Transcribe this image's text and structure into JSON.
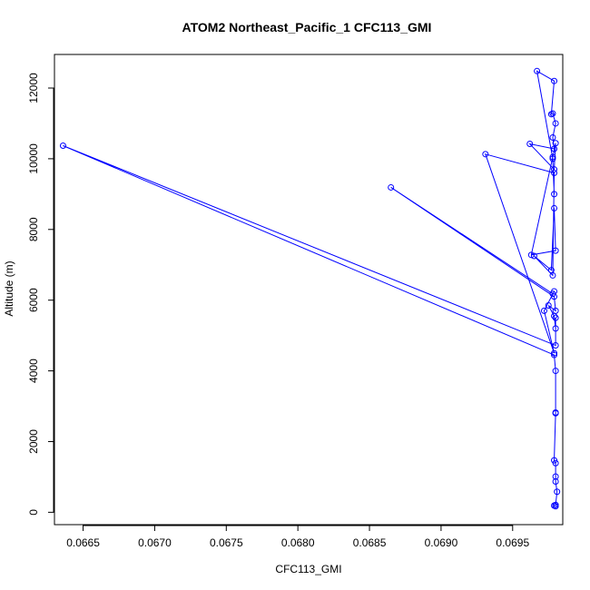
{
  "chart_data": {
    "type": "scatter",
    "title": "ATOM2 Northeast_Pacific_1 CFC113_GMI",
    "xlabel": "CFC113_GMI",
    "ylabel": "Altitude (m)",
    "xlim": [
      0.0663,
      0.06985
    ],
    "ylim": [
      -350,
      12950
    ],
    "xticks": [
      0.0665,
      0.067,
      0.0675,
      0.068,
      0.0685,
      0.069,
      0.0695
    ],
    "xtick_labels": [
      "0.0665",
      "0.0670",
      "0.0675",
      "0.0680",
      "0.0685",
      "0.0690",
      "0.0695"
    ],
    "yticks": [
      0,
      2000,
      4000,
      6000,
      8000,
      10000,
      12000
    ],
    "ytick_labels": [
      "0",
      "2000",
      "4000",
      "6000",
      "8000",
      "10000",
      "12000"
    ],
    "grid": false,
    "marker": "open-circle",
    "line": true,
    "color": "#0000ff",
    "series": [
      {
        "x": [
          0.0698,
          0.06979,
          0.0698,
          0.06981,
          0.0698,
          0.0698,
          0.0698,
          0.06979,
          0.0698,
          0.0698,
          0.0698,
          0.06979,
          0.06636,
          0.0698,
          0.0698,
          0.0698,
          0.06979,
          0.06975,
          0.0698,
          0.06979,
          0.06865,
          0.06978,
          0.06979,
          0.06972,
          0.06979,
          0.06931,
          0.06979,
          0.06978,
          0.06965,
          0.06977,
          0.06979,
          0.0698,
          0.06963,
          0.06978,
          0.0698,
          0.06979,
          0.06962,
          0.06979,
          0.06978,
          0.0698,
          0.06978,
          0.06977,
          0.06979,
          0.06967,
          0.06978,
          0.06979
        ],
        "y": [
          170,
          190,
          210,
          580,
          870,
          1010,
          1390,
          1470,
          2800,
          2820,
          4000,
          4450,
          10370,
          4720,
          5500,
          5200,
          5550,
          5850,
          5700,
          6100,
          9190,
          6180,
          6250,
          5700,
          4500,
          10130,
          9600,
          6700,
          7250,
          6850,
          8600,
          7400,
          7280,
          10050,
          10440,
          9700,
          10420,
          10280,
          10600,
          11000,
          11280,
          11260,
          12200,
          12480,
          10000,
          9000
        ]
      }
    ]
  }
}
